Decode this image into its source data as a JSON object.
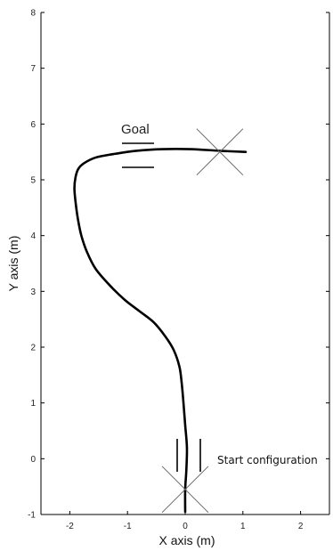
{
  "chart_data": {
    "type": "line",
    "title": "",
    "xlabel": "X axis (m)",
    "ylabel": "Y axis (m)",
    "xlim": [
      -2.5,
      2.5
    ],
    "ylim": [
      -1,
      8
    ],
    "xticks": [
      -2,
      -1,
      0,
      1,
      2
    ],
    "yticks": [
      -1,
      0,
      1,
      2,
      3,
      4,
      5,
      6,
      7,
      8
    ],
    "grid": false,
    "series": [
      {
        "x": [
          0.0,
          0.0,
          0.02,
          0.03,
          0.0,
          -0.03,
          -0.06,
          -0.1,
          -0.2,
          -0.35,
          -0.55,
          -0.8,
          -1.05,
          -1.3,
          -1.55,
          -1.7,
          -1.8,
          -1.86,
          -1.9,
          -1.92,
          -1.9,
          -1.85,
          -1.75,
          -1.55,
          -1.25,
          -0.85,
          -0.4,
          0.1,
          0.6,
          1.05
        ],
        "y": [
          -0.95,
          -0.55,
          -0.2,
          0.2,
          0.6,
          1.0,
          1.35,
          1.65,
          1.95,
          2.2,
          2.45,
          2.65,
          2.85,
          3.1,
          3.4,
          3.7,
          4.0,
          4.3,
          4.6,
          4.85,
          5.05,
          5.2,
          5.3,
          5.4,
          5.46,
          5.52,
          5.55,
          5.55,
          5.52,
          5.5
        ]
      }
    ],
    "goal": {
      "label": "Goal",
      "x": 0.6,
      "y": 5.5
    },
    "start": {
      "label": "Start configuration",
      "x": 0.0,
      "y": -0.55
    }
  }
}
